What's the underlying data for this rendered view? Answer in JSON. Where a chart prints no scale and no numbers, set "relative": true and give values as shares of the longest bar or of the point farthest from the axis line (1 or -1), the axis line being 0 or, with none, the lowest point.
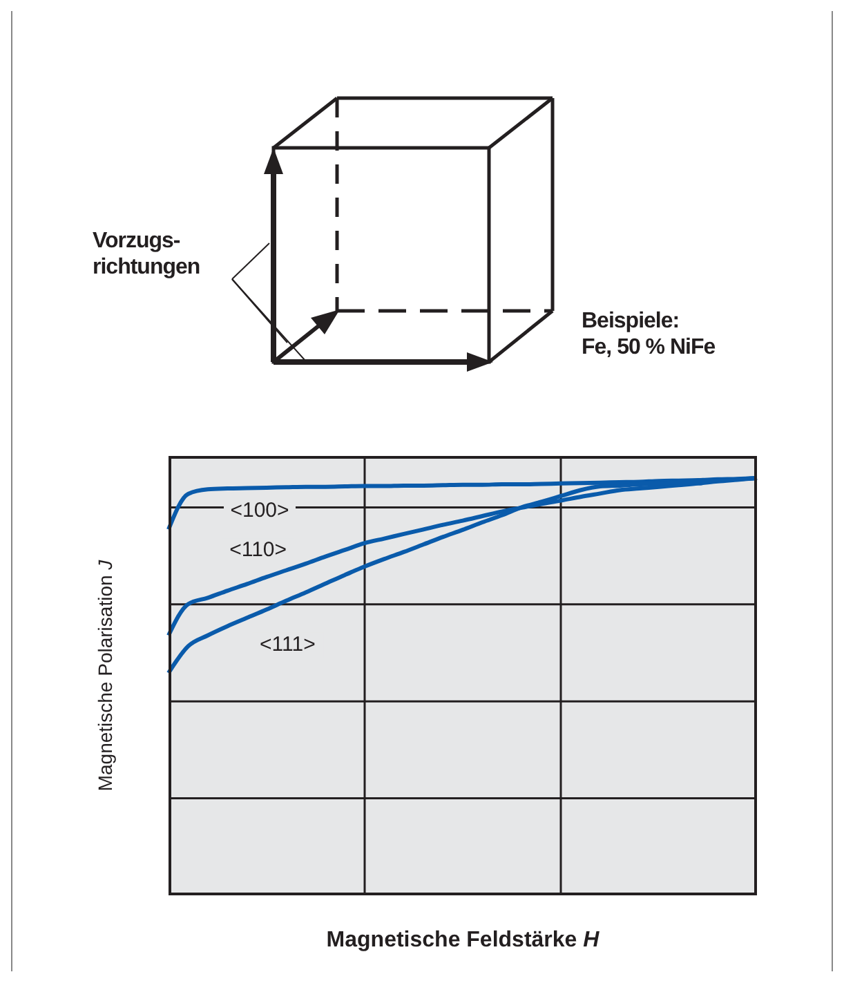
{
  "chart_data": {
    "type": "line",
    "relative": true,
    "xlabel": "Magnetische Feldstärke H",
    "ylabel": "Magnetische Polarisation J",
    "categories": [
      null,
      null,
      null,
      null,
      null,
      null,
      null,
      null,
      null,
      null,
      null,
      null,
      null,
      null,
      null,
      null,
      null,
      null,
      null,
      null,
      null,
      null,
      null,
      null,
      null,
      null,
      null,
      null,
      null,
      null,
      null
    ],
    "series": [
      {
        "name": "<100>",
        "color": "#0a5bab",
        "values": [
          0.877,
          0.962,
          0.973,
          0.975,
          0.976,
          0.977,
          0.978,
          0.979,
          0.979,
          0.98,
          0.981,
          0.981,
          0.982,
          0.982,
          0.983,
          0.984,
          0.984,
          0.985,
          0.985,
          0.986,
          0.987,
          0.988,
          0.989,
          0.99,
          0.991,
          0.993,
          0.994,
          0.995,
          0.997,
          0.998,
          1.0
        ]
      },
      {
        "name": "<110>",
        "color": "#0a5bab",
        "values": [
          0.623,
          0.698,
          0.713,
          0.73,
          0.746,
          0.763,
          0.779,
          0.795,
          0.812,
          0.828,
          0.844,
          0.855,
          0.866,
          0.877,
          0.888,
          0.898,
          0.909,
          0.92,
          0.929,
          0.938,
          0.946,
          0.955,
          0.963,
          0.971,
          0.975,
          0.979,
          0.983,
          0.987,
          0.992,
          0.996,
          1.0
        ]
      },
      {
        "name": "<111>",
        "color": "#0a5bab",
        "values": [
          0.533,
          0.597,
          0.623,
          0.645,
          0.665,
          0.685,
          0.706,
          0.726,
          0.747,
          0.768,
          0.788,
          0.806,
          0.823,
          0.841,
          0.859,
          0.876,
          0.894,
          0.911,
          0.93,
          0.943,
          0.957,
          0.971,
          0.98,
          0.982,
          0.985,
          0.987,
          0.99,
          0.992,
          0.995,
          0.997,
          1.0
        ]
      }
    ],
    "grid": true,
    "marker": "none",
    "line_style": "solid",
    "annotations": [
      "Vorzugs-\nrichtungen",
      "Beispiele:\nFe, 50 % NiFe"
    ]
  }
}
